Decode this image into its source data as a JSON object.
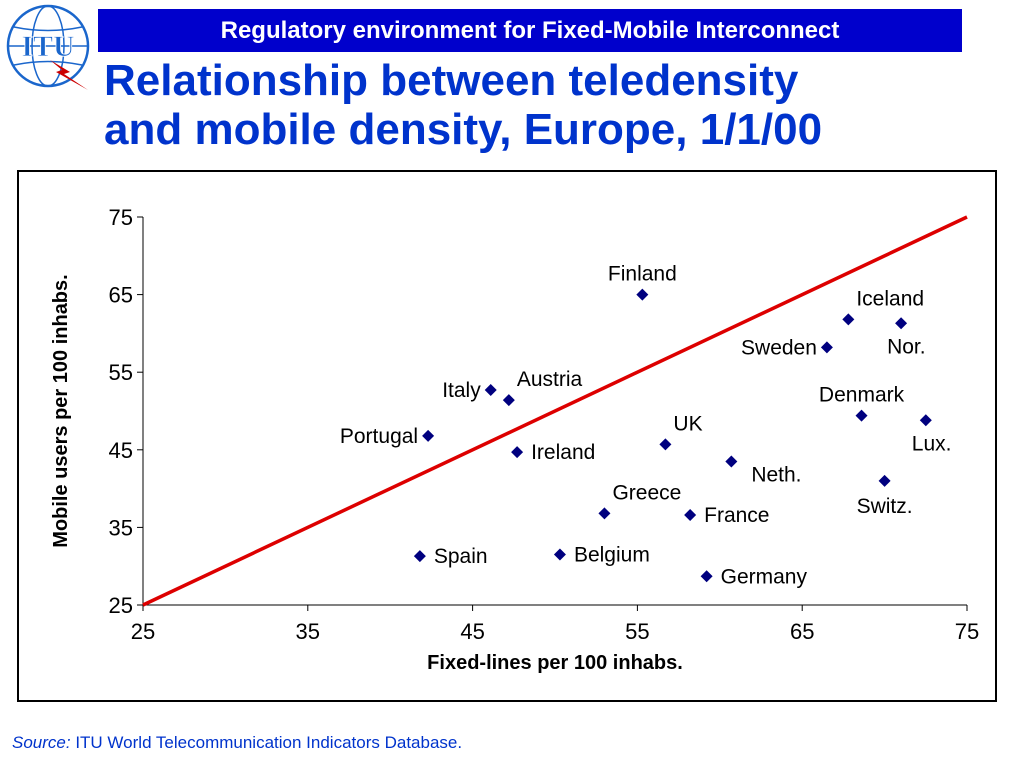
{
  "header": {
    "banner": "Regulatory environment for Fixed-Mobile Interconnect",
    "title_line1": "Relationship between teledensity",
    "title_line2": "and mobile density, Europe, 1/1/00",
    "logo_text": "ITU"
  },
  "footer": {
    "source_label": "Source:",
    "source_text": "ITU World Telecommunication Indicators Database."
  },
  "colors": {
    "banner_bg": "#0000cc",
    "title": "#0033cc",
    "marker": "#00007f",
    "trend_line": "#dd0000"
  },
  "chart_data": {
    "type": "scatter",
    "xlabel": "Fixed-lines per 100 inhabs.",
    "ylabel": "Mobile users per 100 inhabs.",
    "xlim": [
      25,
      75
    ],
    "ylim": [
      25,
      75
    ],
    "xticks": [
      25,
      35,
      45,
      55,
      65,
      75
    ],
    "yticks": [
      25,
      35,
      45,
      55,
      65,
      75
    ],
    "grid": false,
    "reference_line": {
      "from": [
        25,
        25
      ],
      "to": [
        75,
        75
      ]
    },
    "points": [
      {
        "label": "Finland",
        "x": 55.3,
        "y": 65.0,
        "anchor": "above"
      },
      {
        "label": "Iceland",
        "x": 67.8,
        "y": 61.8,
        "anchor": "above-right"
      },
      {
        "label": "Nor.",
        "x": 71.0,
        "y": 61.3,
        "anchor": "below-right"
      },
      {
        "label": "Sweden",
        "x": 66.5,
        "y": 58.2,
        "anchor": "left"
      },
      {
        "label": "Austria",
        "x": 47.2,
        "y": 51.4,
        "anchor": "above-right"
      },
      {
        "label": "Italy",
        "x": 46.1,
        "y": 52.7,
        "anchor": "left"
      },
      {
        "label": "Denmark",
        "x": 68.6,
        "y": 49.4,
        "anchor": "above"
      },
      {
        "label": "Lux.",
        "x": 72.5,
        "y": 48.8,
        "anchor": "below-right"
      },
      {
        "label": "Portugal",
        "x": 42.3,
        "y": 46.8,
        "anchor": "left"
      },
      {
        "label": "Ireland",
        "x": 47.7,
        "y": 44.7,
        "anchor": "right"
      },
      {
        "label": "UK",
        "x": 56.7,
        "y": 45.7,
        "anchor": "above-right"
      },
      {
        "label": "Neth.",
        "x": 60.7,
        "y": 43.5,
        "anchor": "right-below"
      },
      {
        "label": "Switz.",
        "x": 70.0,
        "y": 41.0,
        "anchor": "below"
      },
      {
        "label": "Greece",
        "x": 53.0,
        "y": 36.8,
        "anchor": "above-right"
      },
      {
        "label": "France",
        "x": 58.2,
        "y": 36.6,
        "anchor": "right"
      },
      {
        "label": "Spain",
        "x": 41.8,
        "y": 31.3,
        "anchor": "right"
      },
      {
        "label": "Belgium",
        "x": 50.3,
        "y": 31.5,
        "anchor": "right"
      },
      {
        "label": "Germany",
        "x": 59.2,
        "y": 28.7,
        "anchor": "right"
      }
    ]
  }
}
